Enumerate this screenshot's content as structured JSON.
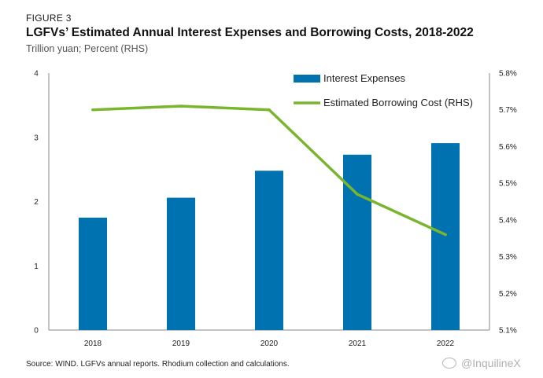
{
  "figure_label": "FIGURE 3",
  "title": "LGFVs’ Estimated Annual Interest Expenses and Borrowing Costs, 2018-2022",
  "subtitle": "Trillion yuan; Percent (RHS)",
  "source": "Source: WIND. LGFVs annual reports. Rhodium collection and calculations.",
  "watermark": "@InquilineX",
  "colors": {
    "bar": "#0072b0",
    "line": "#7ab52e",
    "axis": "#888888"
  },
  "chart_data": {
    "type": "bar",
    "categories": [
      "2018",
      "2019",
      "2020",
      "2021",
      "2022"
    ],
    "series": [
      {
        "name": "Interest Expenses",
        "type": "bar",
        "axis": "left",
        "values": [
          1.75,
          2.06,
          2.48,
          2.73,
          2.91
        ]
      },
      {
        "name": "Estimated Borrowing Cost (RHS)",
        "type": "line",
        "axis": "right",
        "values": [
          5.7,
          5.71,
          5.7,
          5.47,
          5.36
        ]
      }
    ],
    "ylim_left": [
      0,
      4
    ],
    "yticks_left": [
      "0",
      "1",
      "2",
      "3",
      "4"
    ],
    "ylim_right": [
      5.1,
      5.8
    ],
    "yticks_right": [
      "5.1%",
      "5.2%",
      "5.3%",
      "5.4%",
      "5.5%",
      "5.6%",
      "5.7%",
      "5.8%"
    ],
    "legend_position": "top-right",
    "grid": false
  }
}
